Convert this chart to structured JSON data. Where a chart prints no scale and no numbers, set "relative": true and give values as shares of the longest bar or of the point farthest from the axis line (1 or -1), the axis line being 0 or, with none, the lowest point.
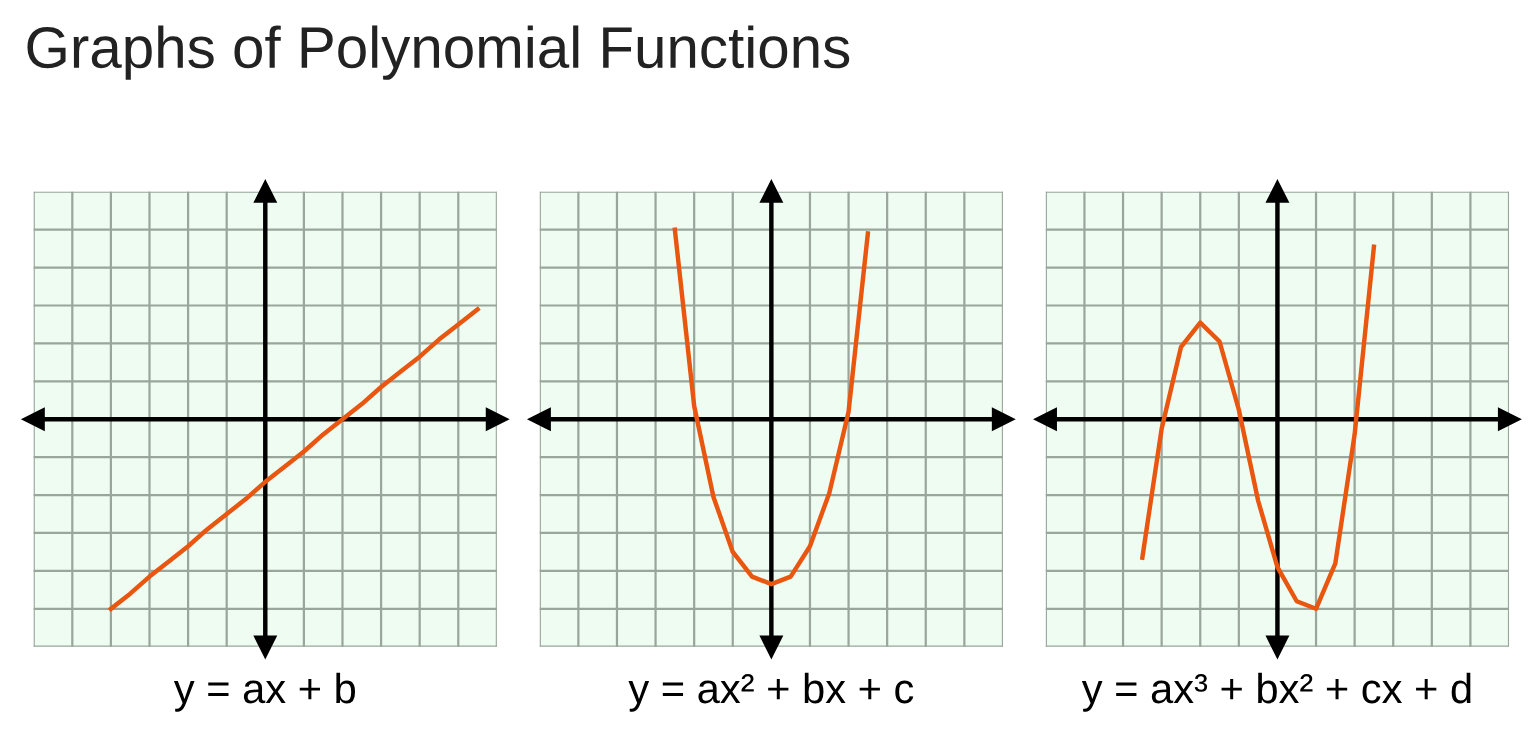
{
  "chart_data": [
    {
      "type": "line",
      "title": "Graphs of Polynomial Functions",
      "xlabel": "y = ax + b",
      "relative": true,
      "grid": true,
      "tick_labels": false,
      "marker": "none",
      "line_style": "solid",
      "categories": [
        null,
        null,
        null,
        null,
        null,
        null,
        null,
        null,
        null,
        null,
        null,
        null,
        null,
        null,
        null,
        null,
        null,
        null,
        null,
        null,
        null,
        null,
        null,
        null,
        null
      ],
      "series": [
        {
          "color": "#e8560f",
          "values": [
            null,
            null,
            null,
            null,
            -1,
            -0.92,
            -0.83,
            -0.75,
            -0.67,
            -0.58,
            -0.5,
            -0.42,
            -0.33,
            -0.25,
            -0.17,
            -0.08,
            0,
            0.08,
            0.17,
            0.25,
            0.33,
            0.42,
            0.5,
            0.58,
            null
          ]
        }
      ]
    },
    {
      "type": "line",
      "xlabel": "y = ax² + bx + c",
      "relative": true,
      "grid": true,
      "tick_labels": false,
      "marker": "none",
      "line_style": "solid",
      "categories": [
        null,
        null,
        null,
        null,
        null,
        null,
        null,
        null,
        null,
        null,
        null,
        null,
        null,
        null,
        null,
        null,
        null,
        null,
        null,
        null,
        null,
        null,
        null,
        null,
        null
      ],
      "series": [
        {
          "color": "#e8560f",
          "values": [
            null,
            null,
            null,
            null,
            null,
            null,
            null,
            1,
            0.07,
            -0.41,
            -0.7,
            -0.83,
            -0.87,
            -0.83,
            -0.67,
            -0.39,
            0.04,
            0.98,
            null,
            null,
            null,
            null,
            null,
            null,
            null
          ]
        }
      ]
    },
    {
      "type": "line",
      "xlabel": "y = ax³ + bx² + cx + d",
      "relative": true,
      "grid": true,
      "tick_labels": false,
      "marker": "none",
      "line_style": "solid",
      "categories": [
        null,
        null,
        null,
        null,
        null,
        null,
        null,
        null,
        null,
        null,
        null,
        null,
        null,
        null,
        null,
        null,
        null,
        null,
        null,
        null,
        null,
        null,
        null,
        null,
        null
      ],
      "series": [
        {
          "color": "#e8560f",
          "values": [
            null,
            null,
            null,
            null,
            null,
            -0.73,
            -0.05,
            0.38,
            0.51,
            0.41,
            0.05,
            -0.43,
            -0.78,
            -0.96,
            -1,
            -0.76,
            -0.08,
            0.91,
            null,
            null,
            null,
            null,
            null,
            null,
            null
          ]
        }
      ]
    }
  ]
}
